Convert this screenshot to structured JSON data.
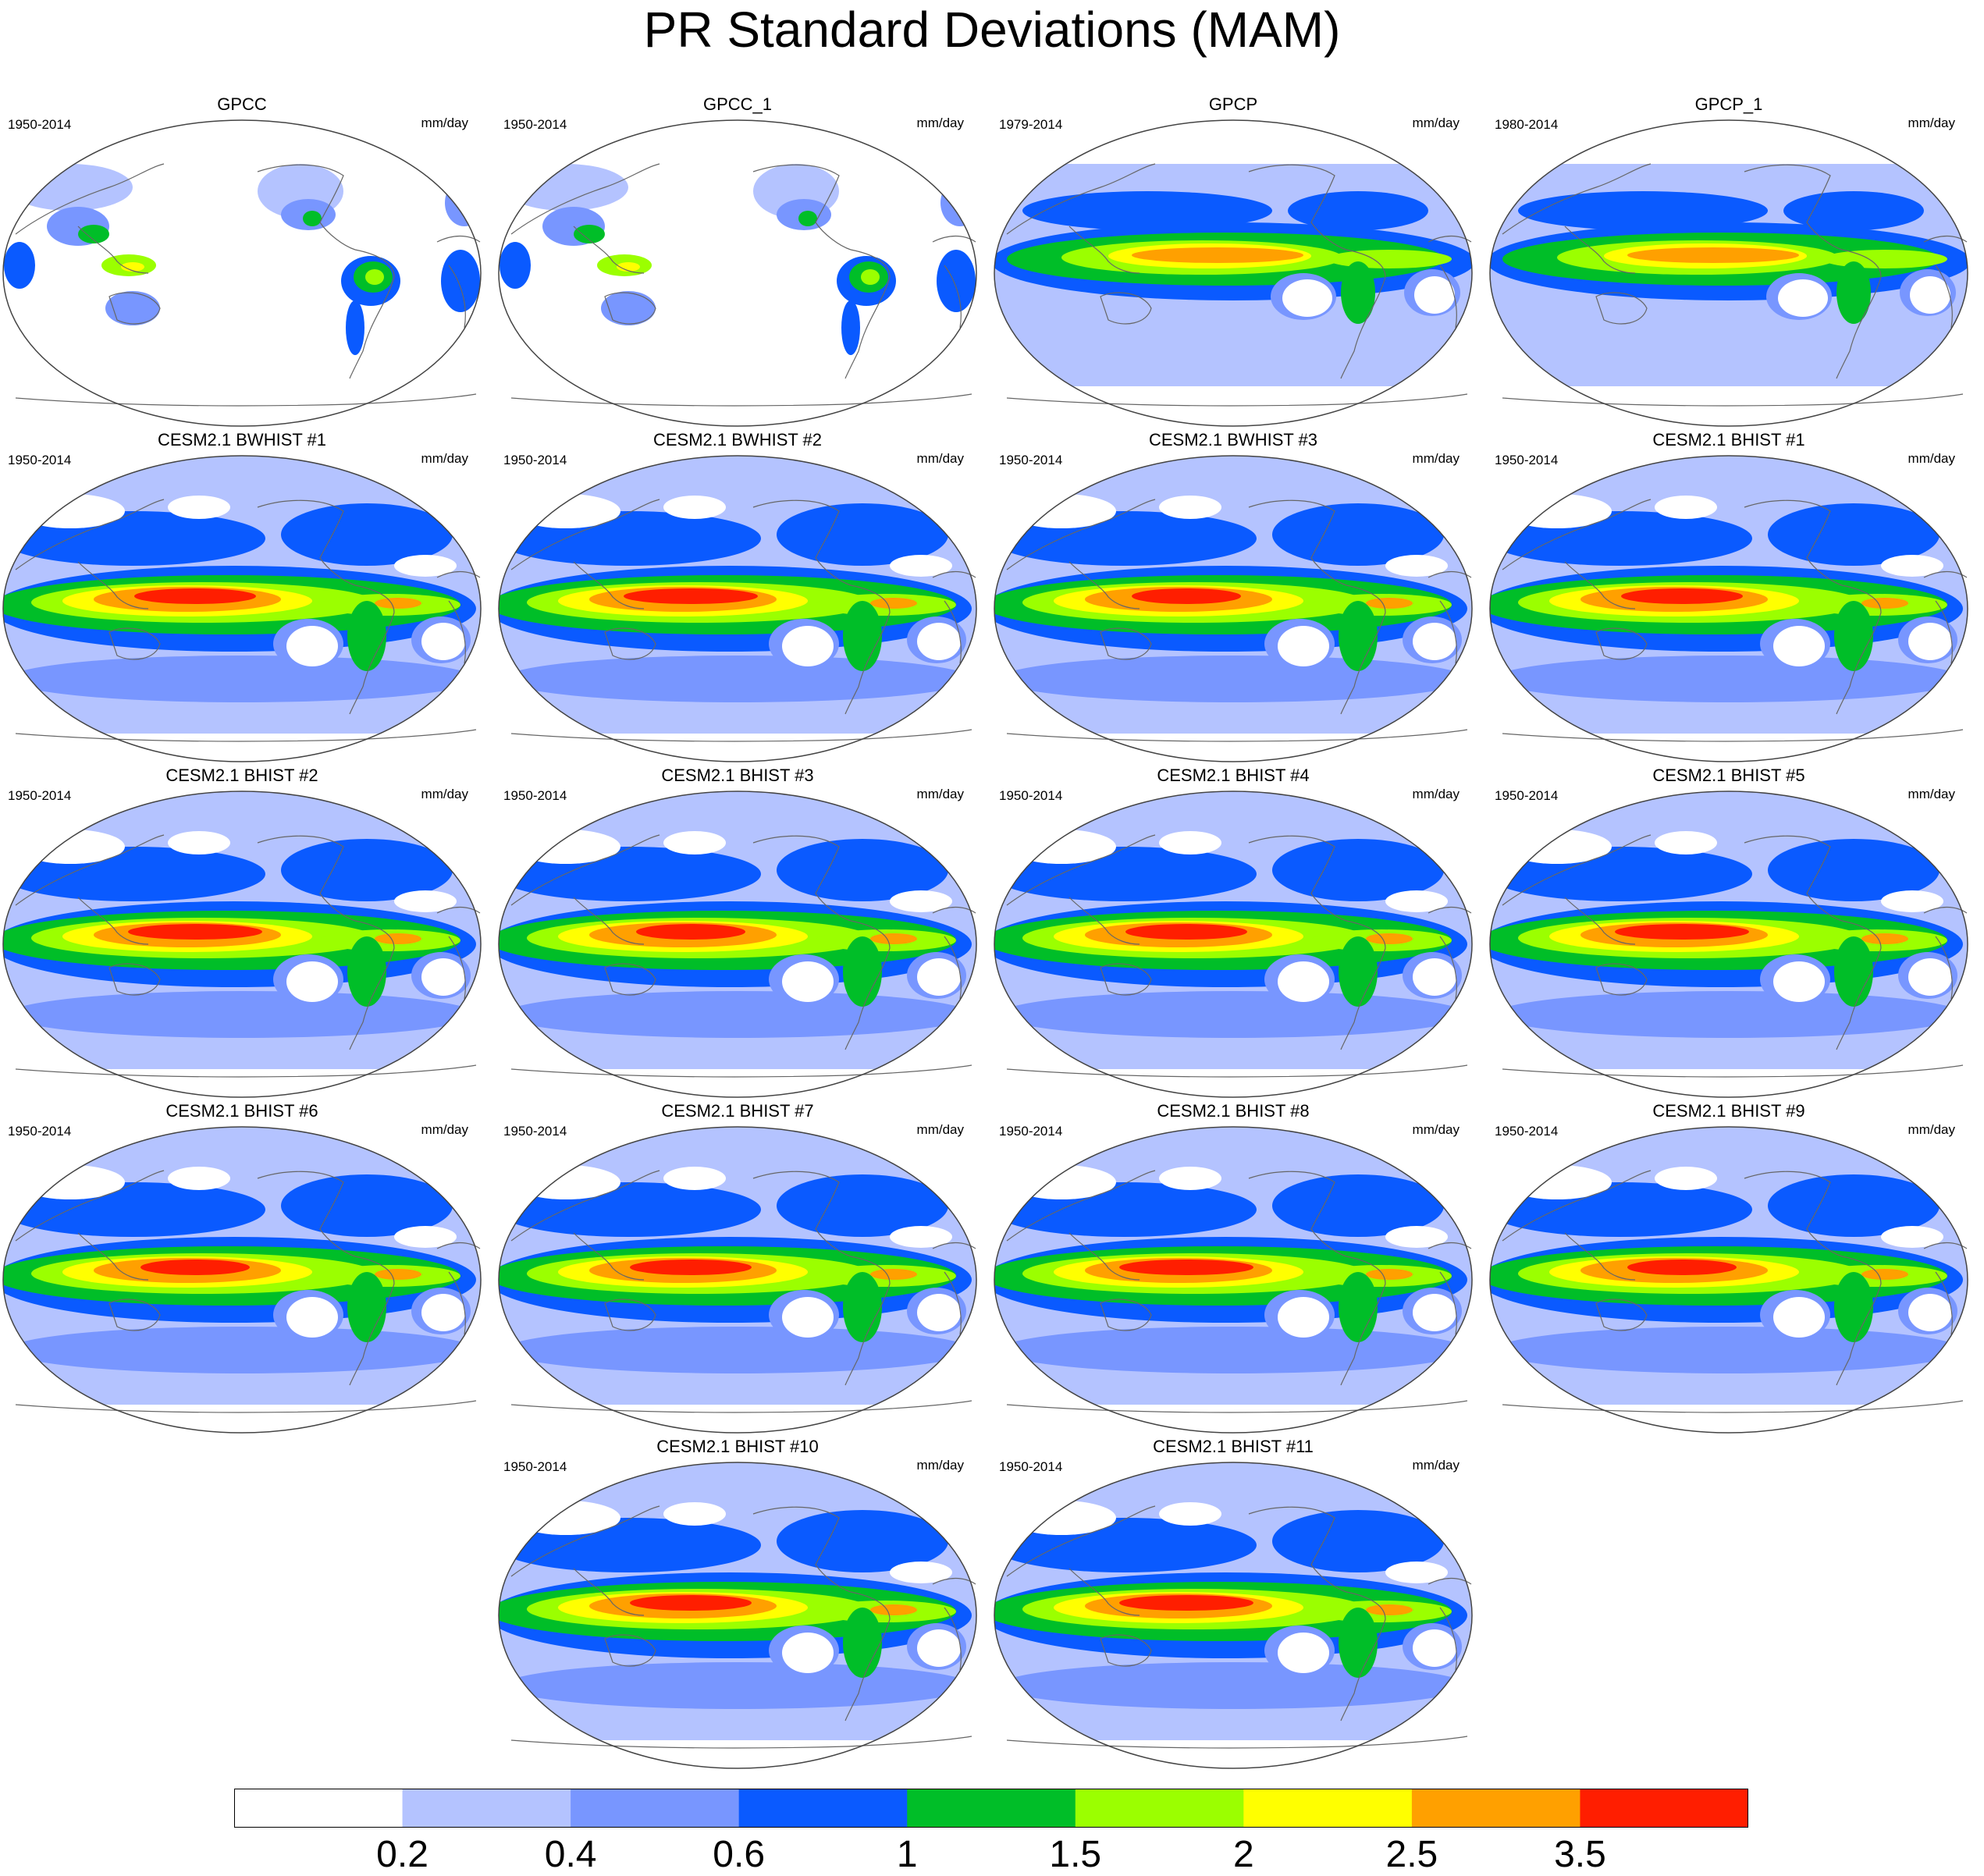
{
  "title": "PR Standard Deviations (MAM)",
  "units": "mm/day",
  "panels": [
    {
      "name": "GPCC",
      "years": "1950-2014",
      "kind": "land"
    },
    {
      "name": "GPCC_1",
      "years": "1950-2014",
      "kind": "land"
    },
    {
      "name": "GPCP",
      "years": "1979-2014",
      "kind": "obs"
    },
    {
      "name": "GPCP_1",
      "years": "1980-2014",
      "kind": "obs"
    },
    {
      "name": "CESM2.1 BWHIST #1",
      "years": "1950-2014",
      "kind": "model"
    },
    {
      "name": "CESM2.1 BWHIST #2",
      "years": "1950-2014",
      "kind": "model"
    },
    {
      "name": "CESM2.1 BWHIST #3",
      "years": "1950-2014",
      "kind": "model"
    },
    {
      "name": "CESM2.1 BHIST #1",
      "years": "1950-2014",
      "kind": "model"
    },
    {
      "name": "CESM2.1 BHIST #2",
      "years": "1950-2014",
      "kind": "model"
    },
    {
      "name": "CESM2.1 BHIST #3",
      "years": "1950-2014",
      "kind": "model"
    },
    {
      "name": "CESM2.1 BHIST #4",
      "years": "1950-2014",
      "kind": "model"
    },
    {
      "name": "CESM2.1 BHIST #5",
      "years": "1950-2014",
      "kind": "model"
    },
    {
      "name": "CESM2.1 BHIST #6",
      "years": "1950-2014",
      "kind": "model"
    },
    {
      "name": "CESM2.1 BHIST #7",
      "years": "1950-2014",
      "kind": "model"
    },
    {
      "name": "CESM2.1 BHIST #8",
      "years": "1950-2014",
      "kind": "model"
    },
    {
      "name": "CESM2.1 BHIST #9",
      "years": "1950-2014",
      "kind": "model"
    },
    {
      "name": "CESM2.1 BHIST #10",
      "years": "1950-2014",
      "kind": "model"
    },
    {
      "name": "CESM2.1 BHIST #11",
      "years": "1950-2014",
      "kind": "model"
    }
  ],
  "colorbar": {
    "labels": [
      "0.2",
      "0.4",
      "0.6",
      "1",
      "1.5",
      "2",
      "2.5",
      "3.5"
    ],
    "colors": [
      "#ffffff",
      "#b4c3ff",
      "#7896ff",
      "#0a5aff",
      "#00be28",
      "#9bff00",
      "#ffff00",
      "#ffa000",
      "#ff1e00"
    ]
  },
  "colors": {
    "frame": "#444444",
    "coast": "#666666"
  }
}
